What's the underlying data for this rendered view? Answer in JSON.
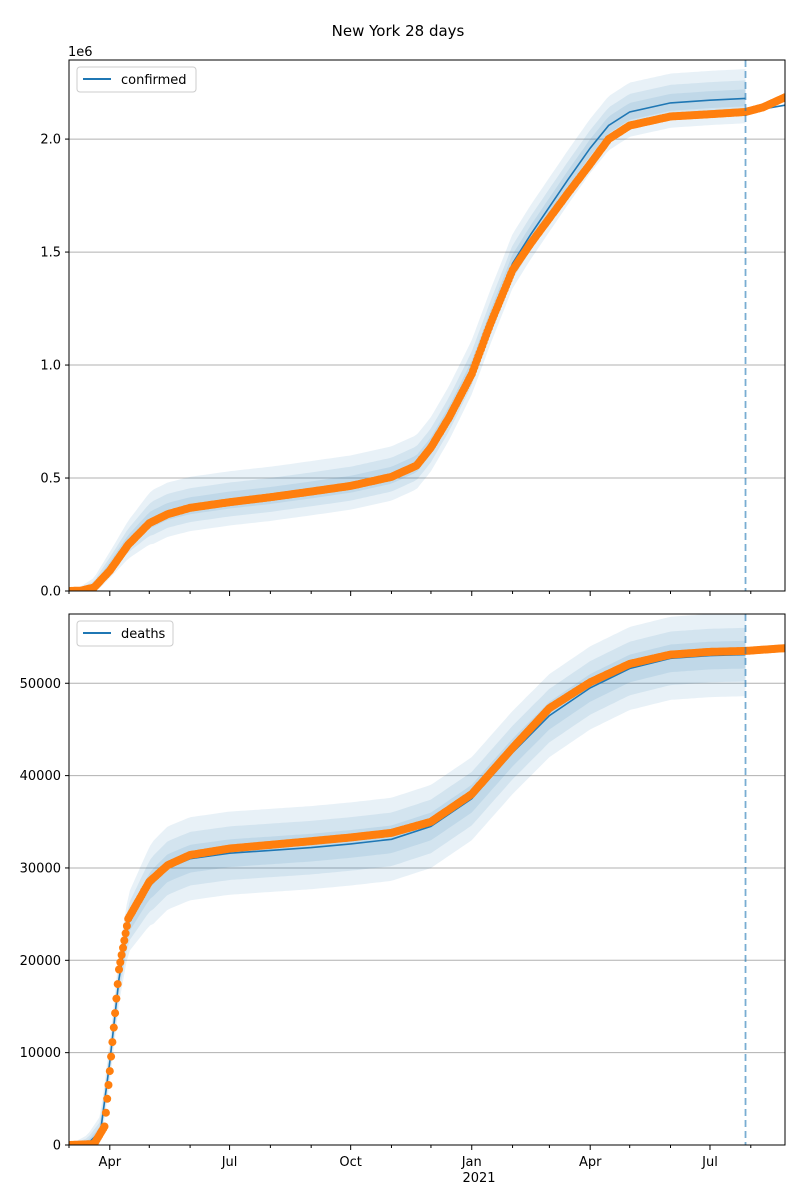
{
  "figure_title": "New York 28 days",
  "colors": {
    "model_line": "#1f77b4",
    "observed_points": "#ff7f0e",
    "band": "#1f77b4",
    "grid": "#b0b0b0",
    "cutoff_line": "#1f77b4"
  },
  "chart_data": [
    {
      "type": "line",
      "panel": "top",
      "title": "",
      "xlabel": "",
      "ylabel": "",
      "y_scale_label": "1e6",
      "ylim": [
        0,
        2350000
      ],
      "xlim": [
        "2020-03-01",
        "2021-08-27"
      ],
      "x_ticks": [
        {
          "date": "2020-04-01",
          "label": "Apr"
        },
        {
          "date": "2020-07-01",
          "label": "Jul"
        },
        {
          "date": "2020-10-01",
          "label": "Oct"
        },
        {
          "date": "2021-01-01",
          "label": "Jan"
        },
        {
          "date": "2021-04-01",
          "label": "Apr"
        },
        {
          "date": "2021-07-01",
          "label": "Jul"
        }
      ],
      "x_tick_labels_shown": false,
      "y_ticks": [
        {
          "value": 0,
          "label": "0.0"
        },
        {
          "value": 500000,
          "label": "0.5"
        },
        {
          "value": 1000000,
          "label": "1.0"
        },
        {
          "value": 1500000,
          "label": "1.5"
        },
        {
          "value": 2000000,
          "label": "2.0"
        }
      ],
      "grid": "y",
      "legend": {
        "position": "top-left",
        "entries": [
          "confirmed"
        ]
      },
      "forecast_start": "2021-07-28",
      "series": [
        {
          "name": "confirmed",
          "role": "model",
          "points": [
            [
              "2020-03-01",
              0
            ],
            [
              "2020-03-10",
              2000
            ],
            [
              "2020-03-20",
              20000
            ],
            [
              "2020-04-01",
              110000
            ],
            [
              "2020-04-15",
              220000
            ],
            [
              "2020-05-01",
              310000
            ],
            [
              "2020-05-15",
              350000
            ],
            [
              "2020-06-01",
              375000
            ],
            [
              "2020-07-01",
              400000
            ],
            [
              "2020-08-01",
              420000
            ],
            [
              "2020-09-01",
              445000
            ],
            [
              "2020-10-01",
              470000
            ],
            [
              "2020-11-01",
              510000
            ],
            [
              "2020-11-20",
              560000
            ],
            [
              "2020-12-01",
              640000
            ],
            [
              "2020-12-15",
              780000
            ],
            [
              "2021-01-01",
              980000
            ],
            [
              "2021-01-15",
              1200000
            ],
            [
              "2021-02-01",
              1450000
            ],
            [
              "2021-02-15",
              1580000
            ],
            [
              "2021-03-01",
              1700000
            ],
            [
              "2021-03-15",
              1820000
            ],
            [
              "2021-04-01",
              1960000
            ],
            [
              "2021-04-15",
              2060000
            ],
            [
              "2021-05-01",
              2120000
            ],
            [
              "2021-06-01",
              2160000
            ],
            [
              "2021-07-01",
              2172000
            ],
            [
              "2021-07-28",
              2180000
            ]
          ],
          "continuation": [
            [
              "2021-07-28",
              2120000
            ],
            [
              "2021-08-27",
              2150000
            ]
          ]
        },
        {
          "name": "",
          "role": "observed",
          "points": [
            [
              "2020-03-01",
              0
            ],
            [
              "2020-03-10",
              1500
            ],
            [
              "2020-03-20",
              15000
            ],
            [
              "2020-04-01",
              90000
            ],
            [
              "2020-04-15",
              205000
            ],
            [
              "2020-05-01",
              300000
            ],
            [
              "2020-05-15",
              340000
            ],
            [
              "2020-06-01",
              368000
            ],
            [
              "2020-07-01",
              393000
            ],
            [
              "2020-08-01",
              415000
            ],
            [
              "2020-09-01",
              440000
            ],
            [
              "2020-10-01",
              465000
            ],
            [
              "2020-11-01",
              505000
            ],
            [
              "2020-11-20",
              555000
            ],
            [
              "2020-12-01",
              635000
            ],
            [
              "2020-12-15",
              770000
            ],
            [
              "2021-01-01",
              960000
            ],
            [
              "2021-01-15",
              1180000
            ],
            [
              "2021-02-01",
              1420000
            ],
            [
              "2021-02-15",
              1540000
            ],
            [
              "2021-03-01",
              1650000
            ],
            [
              "2021-03-15",
              1760000
            ],
            [
              "2021-04-01",
              1890000
            ],
            [
              "2021-04-15",
              2000000
            ],
            [
              "2021-05-01",
              2060000
            ],
            [
              "2021-06-01",
              2100000
            ],
            [
              "2021-07-01",
              2110000
            ],
            [
              "2021-07-28",
              2120000
            ],
            [
              "2021-08-10",
              2140000
            ],
            [
              "2021-08-27",
              2185000
            ]
          ]
        }
      ],
      "bands": [
        {
          "upper_offset": 130000,
          "lower_offset": 110000
        },
        {
          "upper_offset": 80000,
          "lower_offset": 70000
        },
        {
          "upper_offset": 40000,
          "lower_offset": 35000
        }
      ]
    },
    {
      "type": "line",
      "panel": "bottom",
      "title": "",
      "xlabel": "",
      "ylabel": "",
      "ylim": [
        0,
        57500
      ],
      "xlim": [
        "2020-03-01",
        "2021-08-27"
      ],
      "x_ticks": [
        {
          "date": "2020-04-01",
          "label": "Apr"
        },
        {
          "date": "2020-07-01",
          "label": "Jul"
        },
        {
          "date": "2020-10-01",
          "label": "Oct"
        },
        {
          "date": "2021-01-01",
          "label": "Jan"
        },
        {
          "date": "2021-04-01",
          "label": "Apr"
        },
        {
          "date": "2021-07-01",
          "label": "Jul"
        }
      ],
      "x_year_label": "2021",
      "x_tick_labels_shown": true,
      "y_ticks": [
        {
          "value": 0,
          "label": "0"
        },
        {
          "value": 10000,
          "label": "10000"
        },
        {
          "value": 20000,
          "label": "20000"
        },
        {
          "value": 30000,
          "label": "30000"
        },
        {
          "value": 40000,
          "label": "40000"
        },
        {
          "value": 50000,
          "label": "50000"
        }
      ],
      "grid": "y",
      "legend": {
        "position": "top-left",
        "entries": [
          "deaths"
        ]
      },
      "forecast_start": "2021-07-28",
      "series": [
        {
          "name": "deaths",
          "role": "model",
          "points": [
            [
              "2020-03-01",
              0
            ],
            [
              "2020-03-15",
              100
            ],
            [
              "2020-03-25",
              1500
            ],
            [
              "2020-04-01",
              9000
            ],
            [
              "2020-04-08",
              18000
            ],
            [
              "2020-04-15",
              24000
            ],
            [
              "2020-05-01",
              28000
            ],
            [
              "2020-05-15",
              30000
            ],
            [
              "2020-06-01",
              31000
            ],
            [
              "2020-07-01",
              31600
            ],
            [
              "2020-08-01",
              31900
            ],
            [
              "2020-09-01",
              32200
            ],
            [
              "2020-10-01",
              32600
            ],
            [
              "2020-11-01",
              33100
            ],
            [
              "2020-12-01",
              34500
            ],
            [
              "2021-01-01",
              37500
            ],
            [
              "2021-02-01",
              42500
            ],
            [
              "2021-03-01",
              46500
            ],
            [
              "2021-04-01",
              49500
            ],
            [
              "2021-05-01",
              51600
            ],
            [
              "2021-06-01",
              52700
            ],
            [
              "2021-07-01",
              53000
            ],
            [
              "2021-07-28",
              53100
            ]
          ]
        },
        {
          "name": "",
          "role": "observed",
          "points": [
            [
              "2020-03-01",
              0
            ],
            [
              "2020-03-20",
              100
            ],
            [
              "2020-03-28",
              2000
            ],
            [
              "2020-04-01",
              8000
            ],
            [
              "2020-04-08",
              19000
            ],
            [
              "2020-04-15",
              24500
            ],
            [
              "2020-05-01",
              28500
            ],
            [
              "2020-05-15",
              30300
            ],
            [
              "2020-06-01",
              31400
            ],
            [
              "2020-07-01",
              32100
            ],
            [
              "2020-08-01",
              32500
            ],
            [
              "2020-09-01",
              32900
            ],
            [
              "2020-10-01",
              33300
            ],
            [
              "2020-11-01",
              33800
            ],
            [
              "2020-12-01",
              35000
            ],
            [
              "2021-01-01",
              38000
            ],
            [
              "2021-02-01",
              43000
            ],
            [
              "2021-03-01",
              47300
            ],
            [
              "2021-04-01",
              50100
            ],
            [
              "2021-05-01",
              52100
            ],
            [
              "2021-06-01",
              53100
            ],
            [
              "2021-07-01",
              53400
            ],
            [
              "2021-07-28",
              53500
            ],
            [
              "2021-08-27",
              53800
            ]
          ]
        }
      ],
      "bands": [
        {
          "upper_offset": 4500,
          "lower_offset": 4500
        },
        {
          "upper_offset": 2900,
          "lower_offset": 2900
        },
        {
          "upper_offset": 1500,
          "lower_offset": 1500
        }
      ]
    }
  ]
}
